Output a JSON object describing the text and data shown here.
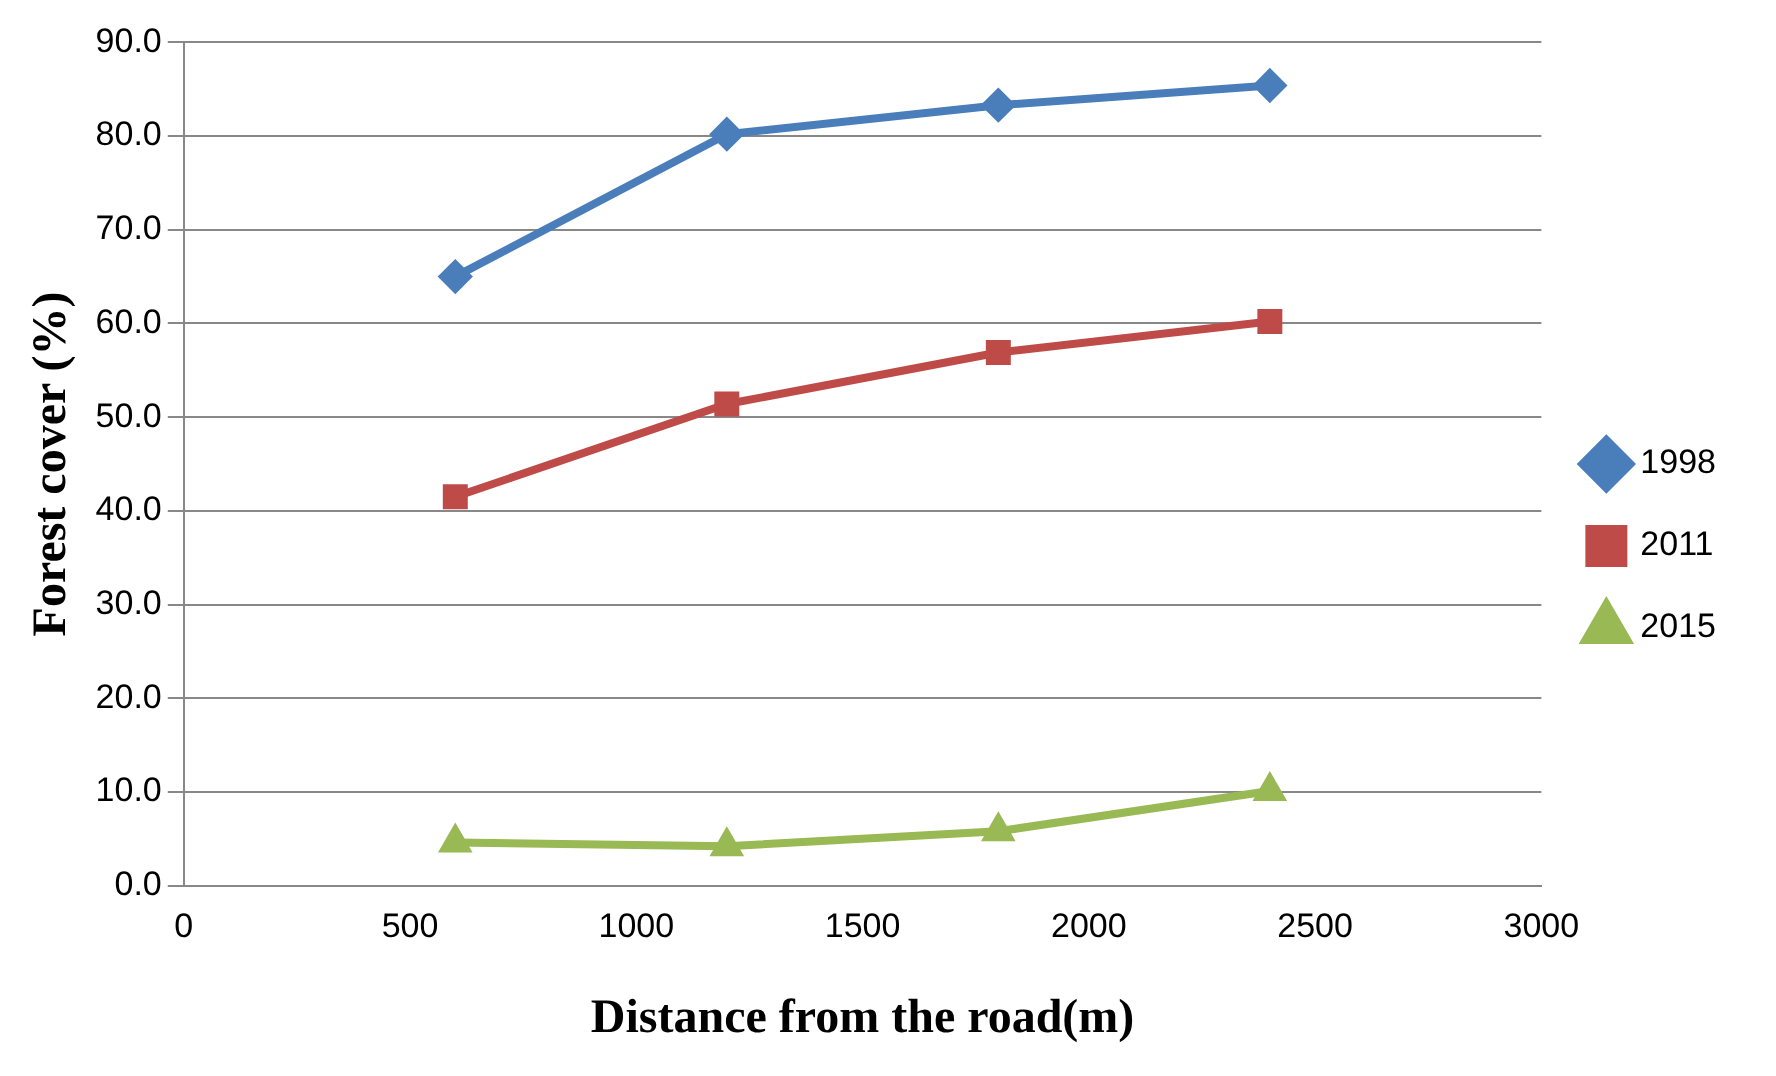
{
  "chart_data": {
    "type": "line",
    "xlabel": "Distance from the road(m)",
    "ylabel": "Forest cover (%)",
    "x": [
      600,
      1200,
      1800,
      2400
    ],
    "series": [
      {
        "name": "1998",
        "color": "#4a7ebb",
        "marker": "diamond",
        "values": [
          65.0,
          80.2,
          83.3,
          85.4
        ]
      },
      {
        "name": "2011",
        "color": "#be4b48",
        "marker": "square",
        "values": [
          41.5,
          51.4,
          56.9,
          60.2
        ]
      },
      {
        "name": "2015",
        "color": "#98b954",
        "marker": "triangle",
        "values": [
          4.6,
          4.2,
          5.8,
          10.1
        ]
      }
    ],
    "xlim": [
      0,
      3000
    ],
    "xticks": [
      0,
      500,
      1000,
      1500,
      2000,
      2500,
      3000
    ],
    "ylim": [
      0,
      90
    ],
    "yticks": [
      {
        "value": 0,
        "label": "0.0"
      },
      {
        "value": 10,
        "label": "10.0"
      },
      {
        "value": 20,
        "label": "20.0"
      },
      {
        "value": 30,
        "label": "30.0"
      },
      {
        "value": 40,
        "label": "40.0"
      },
      {
        "value": 50,
        "label": "50.0"
      },
      {
        "value": 60,
        "label": "60.0"
      },
      {
        "value": 70,
        "label": "70.0"
      },
      {
        "value": 80,
        "label": "80.0"
      },
      {
        "value": 90,
        "label": "90.0"
      }
    ],
    "grid": "y",
    "legend": "right",
    "line_style": "solid"
  }
}
